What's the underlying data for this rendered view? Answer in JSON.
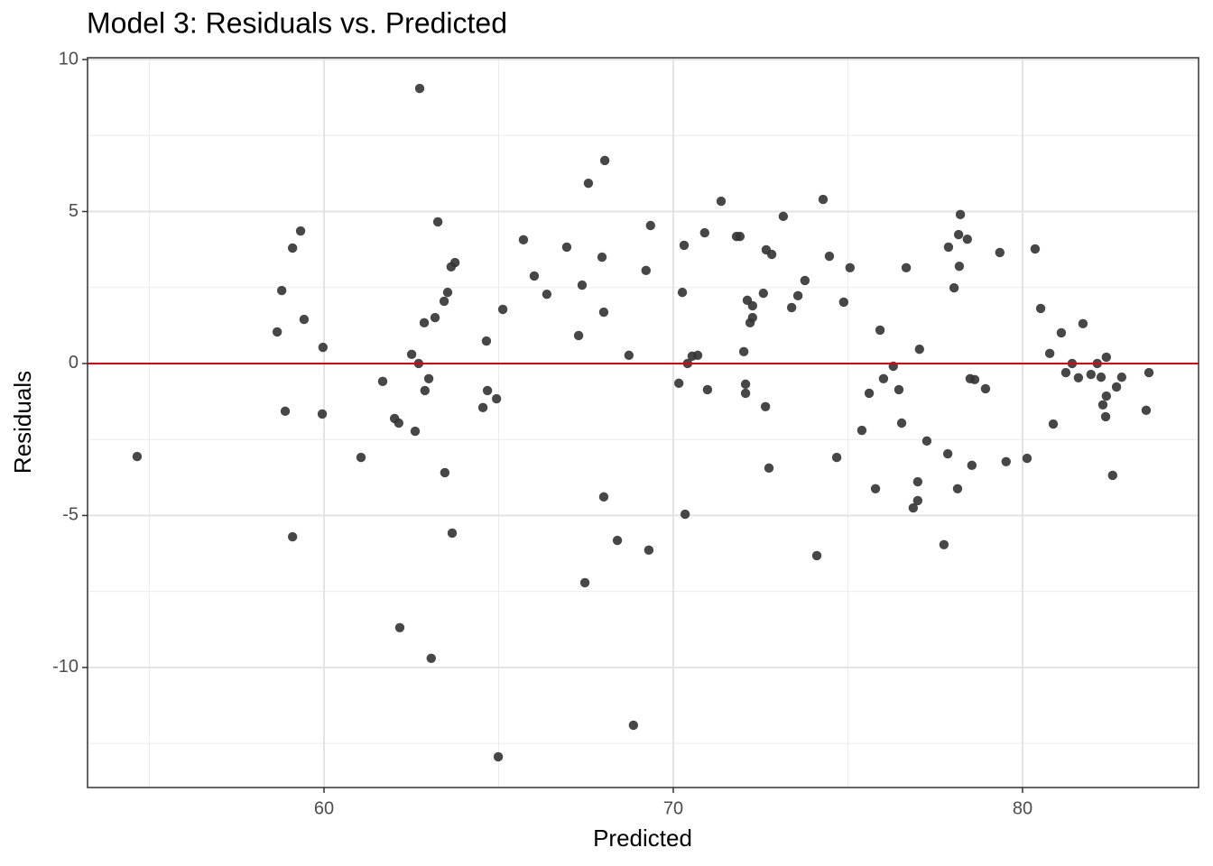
{
  "chart_data": {
    "type": "scatter",
    "title": "Model 3: Residuals vs. Predicted",
    "x_label": "Predicted",
    "y_label": "Residuals",
    "xlim": [
      53.23,
      85.04
    ],
    "ylim": [
      -13.95,
      10.06
    ],
    "xticks": [
      60,
      70,
      80
    ],
    "yticks": [
      -10,
      -5,
      0,
      5,
      10
    ],
    "x_minor_grid": [
      55,
      65,
      75
    ],
    "y_minor_grid": [
      -12.5,
      -7.5,
      -2.5,
      2.5,
      7.5
    ],
    "grid": true,
    "color": "#333333",
    "hline": 0,
    "hline_color": "#e8000b",
    "x": [
      54.65,
      58.66,
      58.79,
      58.89,
      59.1,
      59.1,
      59.33,
      59.43,
      59.97,
      59.95,
      61.06,
      61.68,
      62.02,
      62.14,
      62.17,
      62.51,
      62.61,
      62.71,
      62.74,
      62.87,
      62.89,
      63.0,
      63.07,
      63.18,
      63.26,
      63.44,
      63.46,
      63.54,
      63.64,
      63.67,
      63.75,
      64.55,
      64.65,
      64.68,
      64.94,
      64.99,
      65.12,
      65.71,
      66.02,
      66.38,
      66.95,
      67.29,
      67.39,
      67.47,
      67.57,
      67.96,
      68.01,
      68.01,
      68.04,
      68.4,
      68.73,
      68.86,
      69.22,
      69.3,
      69.35,
      70.16,
      70.26,
      70.31,
      70.34,
      70.41,
      70.54,
      70.7,
      70.9,
      70.98,
      71.37,
      71.81,
      71.91,
      72.02,
      72.07,
      72.07,
      72.12,
      72.2,
      72.27,
      72.27,
      72.58,
      72.64,
      72.66,
      72.74,
      72.82,
      73.15,
      73.39,
      73.57,
      73.77,
      74.11,
      74.29,
      74.47,
      74.68,
      74.88,
      75.06,
      75.4,
      75.61,
      75.79,
      75.92,
      76.02,
      76.3,
      76.46,
      76.54,
      76.67,
      76.87,
      77.0,
      77.0,
      77.05,
      77.26,
      77.75,
      77.86,
      77.88,
      78.04,
      78.14,
      78.17,
      78.19,
      78.22,
      78.42,
      78.5,
      78.55,
      78.63,
      78.94,
      79.35,
      79.53,
      80.13,
      80.36,
      80.52,
      80.78,
      80.88,
      81.11,
      81.24,
      81.42,
      81.6,
      81.73,
      81.96,
      82.14,
      82.25,
      82.3,
      82.38,
      82.4,
      82.4,
      82.58,
      82.69,
      82.84,
      83.54,
      83.62
    ],
    "values": [
      -3.06,
      1.04,
      2.4,
      -1.57,
      3.8,
      -5.7,
      4.36,
      1.45,
      0.53,
      -1.66,
      -3.09,
      -0.59,
      -1.81,
      -1.96,
      -8.69,
      0.3,
      -2.23,
      0.0,
      9.05,
      1.34,
      -0.89,
      -0.5,
      -9.7,
      1.51,
      4.66,
      2.05,
      -3.59,
      2.34,
      3.18,
      -5.58,
      3.32,
      -1.45,
      0.74,
      -0.89,
      -1.16,
      -12.94,
      1.78,
      4.07,
      2.88,
      2.28,
      3.83,
      0.92,
      2.58,
      -7.21,
      5.93,
      3.5,
      -4.39,
      1.69,
      6.68,
      -5.82,
      0.27,
      -11.9,
      3.06,
      -6.14,
      4.54,
      -0.65,
      2.34,
      3.89,
      -4.96,
      0.0,
      0.24,
      0.27,
      4.3,
      -0.86,
      5.34,
      4.18,
      4.18,
      0.39,
      -0.68,
      -0.98,
      2.08,
      1.34,
      1.9,
      1.51,
      2.31,
      -1.42,
      3.74,
      -3.44,
      3.59,
      4.84,
      1.84,
      2.23,
      2.73,
      -6.32,
      5.4,
      3.53,
      -3.09,
      2.02,
      3.15,
      -2.2,
      -0.98,
      -4.12,
      1.1,
      -0.5,
      -0.09,
      -0.86,
      -1.96,
      3.15,
      -4.75,
      -3.89,
      -4.51,
      0.47,
      -2.55,
      -5.96,
      -2.97,
      3.83,
      2.49,
      -4.12,
      4.24,
      3.2,
      4.9,
      4.09,
      -0.5,
      -3.35,
      -0.53,
      -0.83,
      3.65,
      -3.23,
      -3.12,
      3.77,
      1.81,
      0.33,
      -1.99,
      1.01,
      -0.3,
      0.0,
      -0.47,
      1.31,
      -0.36,
      0.0,
      -0.45,
      -1.36,
      -1.75,
      0.21,
      -1.07,
      -3.68,
      -0.77,
      -0.45,
      -1.54,
      -0.3
    ]
  }
}
